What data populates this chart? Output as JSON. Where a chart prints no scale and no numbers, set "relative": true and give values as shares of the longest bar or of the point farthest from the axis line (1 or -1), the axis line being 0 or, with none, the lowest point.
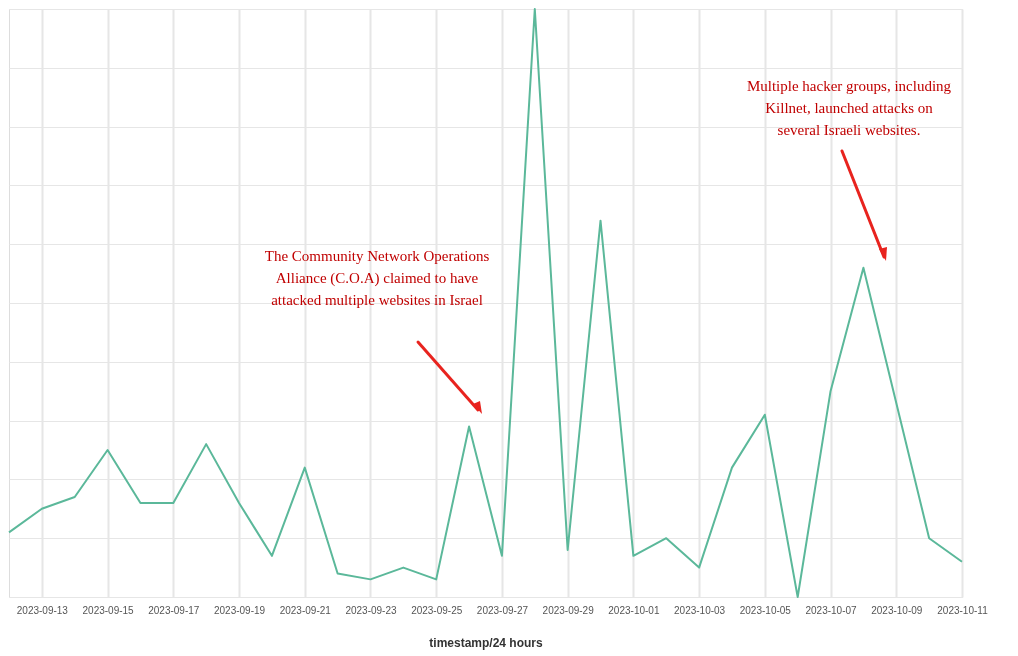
{
  "chart_data": {
    "type": "line",
    "relative": true,
    "xlabel": "timestamp/24 hours",
    "x": [
      "2023-09-12",
      "2023-09-13",
      "2023-09-14",
      "2023-09-15",
      "2023-09-16",
      "2023-09-17",
      "2023-09-18",
      "2023-09-19",
      "2023-09-20",
      "2023-09-21",
      "2023-09-22",
      "2023-09-23",
      "2023-09-24",
      "2023-09-25",
      "2023-09-26",
      "2023-09-27",
      "2023-09-28",
      "2023-09-29",
      "2023-09-30",
      "2023-10-01",
      "2023-10-02",
      "2023-10-03",
      "2023-10-04",
      "2023-10-05",
      "2023-10-06",
      "2023-10-07",
      "2023-10-08",
      "2023-10-09",
      "2023-10-10",
      "2023-10-11"
    ],
    "series": [
      {
        "color": "#5bb89a",
        "values": [
          0.11,
          0.15,
          0.17,
          0.25,
          0.16,
          0.16,
          0.26,
          0.16,
          0.07,
          0.22,
          0.04,
          0.03,
          0.05,
          0.03,
          0.29,
          0.07,
          1,
          0.08,
          0.64,
          0.07,
          0.1,
          0.05,
          0.22,
          0.31,
          0,
          0.35,
          0.56,
          0.33,
          0.1,
          0.06
        ]
      }
    ],
    "xlim": [
      "2023-09-12",
      "2023-10-11"
    ],
    "xticks": [
      "2023-09-13",
      "2023-09-15",
      "2023-09-17",
      "2023-09-19",
      "2023-09-21",
      "2023-09-23",
      "2023-09-25",
      "2023-09-27",
      "2023-09-29",
      "2023-10-01",
      "2023-10-03",
      "2023-10-05",
      "2023-10-07",
      "2023-10-09",
      "2023-10-11"
    ],
    "grid": true,
    "marker": "none",
    "line_style": "solid",
    "annotations": [
      "The Community Network Operations\nAlliance (C.O.A) claimed to have\nattacked multiple websites in Israel",
      "Multiple hacker groups, including\nKillnet, launched attacks on\nseveral Israeli websites."
    ]
  }
}
